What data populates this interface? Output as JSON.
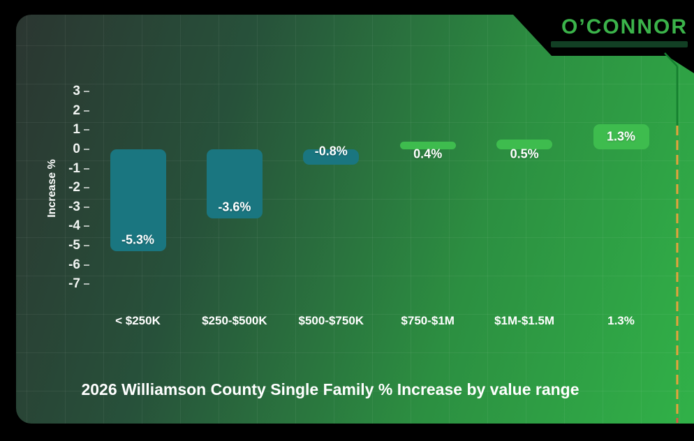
{
  "logo": {
    "name": "O’CONNOR",
    "color": "#3bb34a"
  },
  "chart_data": {
    "type": "bar",
    "title": "2026 Williamson County Single Family % Increase by value range",
    "xlabel": "",
    "ylabel": "Increase %",
    "categories": [
      "< $250K",
      "$250-$500K",
      "$500-$750K",
      "$750-$1M",
      "$1M-$1.5M",
      "1.3%"
    ],
    "values": [
      -5.3,
      -3.6,
      -0.8,
      0.4,
      0.5,
      1.3
    ],
    "value_labels": [
      "-5.3%",
      "-3.6%",
      "-0.8%",
      "0.4%",
      "0.5%",
      "1.3%"
    ],
    "y_ticks": [
      3,
      2,
      1,
      0,
      -1,
      -2,
      -3,
      -4,
      -5,
      -6,
      -7
    ],
    "ylim": [
      -7,
      3
    ],
    "grid": true,
    "legend": "none",
    "colors": {
      "negative_bar": "#1a7680",
      "positive_bar": "#3ebc4e",
      "label_text": "#ffffff"
    }
  },
  "decorations": {
    "accent_line_orange": "#e5a33c",
    "accent_line_green": "#157f2f",
    "accent_end_tick": "#d95b43",
    "background": "#000000"
  }
}
